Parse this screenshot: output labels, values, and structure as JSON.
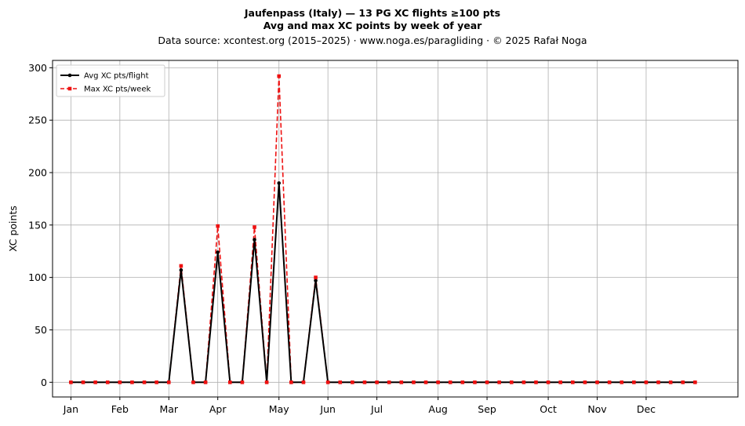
{
  "chart_data": {
    "type": "line",
    "title_line1": "Jaufenpass (Italy)  —  13 PG XC flights ≥100 pts",
    "title_line2": "Avg and max XC points by week of year",
    "subtitle": "Data source: xcontest.org (2015–2025)  ·  www.noga.es/paragliding  ·  © 2025 Rafał Noga",
    "xlabel": "",
    "ylabel": "XC points",
    "ylim": [
      -14,
      307
    ],
    "xlim": [
      -1.5,
      54.5
    ],
    "grid": true,
    "legend_position": "top-left",
    "y_ticks": [
      0,
      50,
      100,
      150,
      200,
      250,
      300
    ],
    "month_ticks": [
      {
        "week": 0,
        "label": "Jan"
      },
      {
        "week": 4,
        "label": "Feb"
      },
      {
        "week": 8,
        "label": "Mar"
      },
      {
        "week": 12,
        "label": "Apr"
      },
      {
        "week": 17,
        "label": "May"
      },
      {
        "week": 21,
        "label": "Jun"
      },
      {
        "week": 25,
        "label": "Jul"
      },
      {
        "week": 30,
        "label": "Aug"
      },
      {
        "week": 34,
        "label": "Sep"
      },
      {
        "week": 39,
        "label": "Oct"
      },
      {
        "week": 43,
        "label": "Nov"
      },
      {
        "week": 47,
        "label": "Dec"
      }
    ],
    "x": [
      0,
      1,
      2,
      3,
      4,
      5,
      6,
      7,
      8,
      9,
      10,
      11,
      12,
      13,
      14,
      15,
      16,
      17,
      18,
      19,
      20,
      21,
      22,
      23,
      24,
      25,
      26,
      27,
      28,
      29,
      30,
      31,
      32,
      33,
      34,
      35,
      36,
      37,
      38,
      39,
      40,
      41,
      42,
      43,
      44,
      45,
      46,
      47,
      48,
      49,
      50,
      51
    ],
    "series": [
      {
        "name": "Avg XC pts/flight",
        "color": "#000000",
        "values": [
          0,
          0,
          0,
          0,
          0,
          0,
          0,
          0,
          0,
          107,
          0,
          0,
          124,
          0,
          0,
          136,
          0,
          190,
          0,
          0,
          97,
          0,
          0,
          0,
          0,
          0,
          0,
          0,
          0,
          0,
          0,
          0,
          0,
          0,
          0,
          0,
          0,
          0,
          0,
          0,
          0,
          0,
          0,
          0,
          0,
          0,
          0,
          0,
          0,
          0,
          0,
          0
        ]
      },
      {
        "name": "Max XC pts/week",
        "color": "#ee1111",
        "values": [
          0,
          0,
          0,
          0,
          0,
          0,
          0,
          0,
          0,
          111,
          0,
          0,
          149,
          0,
          0,
          148,
          0,
          292,
          0,
          0,
          100,
          0,
          0,
          0,
          0,
          0,
          0,
          0,
          0,
          0,
          0,
          0,
          0,
          0,
          0,
          0,
          0,
          0,
          0,
          0,
          0,
          0,
          0,
          0,
          0,
          0,
          0,
          0,
          0,
          0,
          0,
          0
        ]
      }
    ]
  }
}
